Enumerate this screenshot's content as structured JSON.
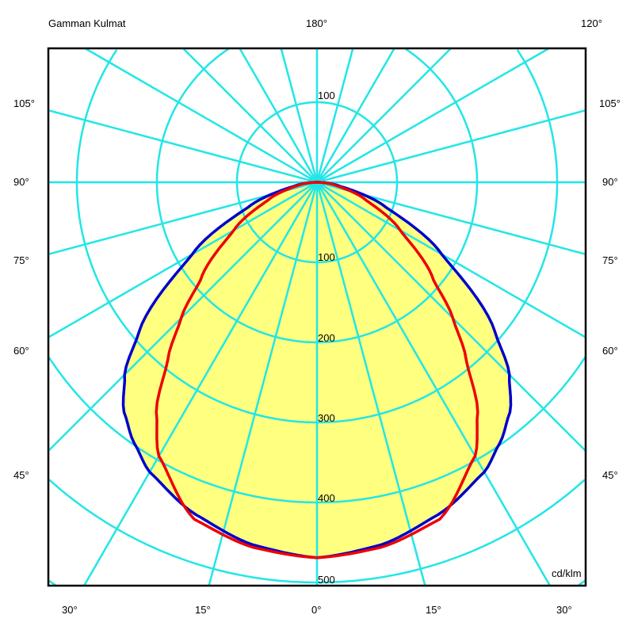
{
  "chart_data": {
    "type": "polar-line",
    "title": "Gamman Kulmat",
    "unit": "cd/klm",
    "top_labels": [
      "180°",
      "120°"
    ],
    "side_labels": [
      "105°",
      "90°",
      "75°",
      "60°",
      "45°"
    ],
    "bottom_labels": [
      "30°",
      "15°",
      "0°",
      "15°",
      "30°"
    ],
    "ring_labels_upper": [
      "100"
    ],
    "ring_labels_lower": [
      "100",
      "200",
      "300",
      "400",
      "500"
    ],
    "rings": [
      100,
      200,
      300,
      400,
      500,
      600,
      700
    ],
    "radial_step_deg": 15,
    "grid": true,
    "gamma": [
      0,
      10,
      20,
      30,
      35,
      40,
      45,
      50,
      60,
      70,
      80,
      90
    ],
    "series": [
      {
        "color": "#0000cc",
        "values": [
          469,
          460,
          442,
          418,
          398,
          375,
          340,
          290,
          180,
          92,
          30,
          0
        ]
      },
      {
        "color": "#ee0000",
        "values": [
          469,
          463,
          448,
          395,
          350,
          290,
          240,
          190,
          120,
          65,
          25,
          0
        ]
      }
    ],
    "fill_color": "#ffff80",
    "grid_color": "#22e6e6"
  }
}
